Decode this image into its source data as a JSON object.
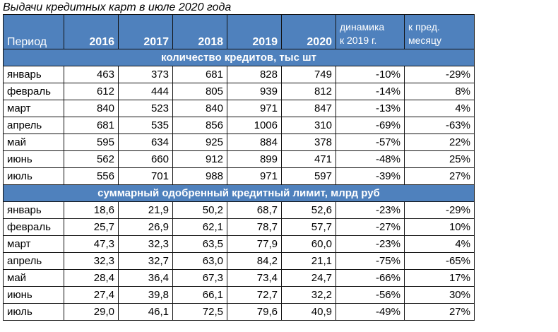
{
  "title": "Выдачи кредитных карт в июле 2020 года",
  "header": {
    "period": "Период",
    "years": [
      "2016",
      "2017",
      "2018",
      "2019",
      "2020"
    ],
    "dyn_line1": "динамика",
    "dyn_line2": "к 2019 г.",
    "prev_line1": "к пред.",
    "prev_line2": "месяцу"
  },
  "sections": [
    {
      "title": "количество кредитов, тыс шт",
      "rows": [
        {
          "month": "январь",
          "v": [
            "463",
            "373",
            "681",
            "828",
            "749"
          ],
          "dyn": "-10%",
          "prev": "-29%"
        },
        {
          "month": "февраль",
          "v": [
            "612",
            "444",
            "805",
            "939",
            "812"
          ],
          "dyn": "-14%",
          "prev": "8%"
        },
        {
          "month": "март",
          "v": [
            "840",
            "523",
            "840",
            "971",
            "847"
          ],
          "dyn": "-13%",
          "prev": "4%"
        },
        {
          "month": "апрель",
          "v": [
            "681",
            "535",
            "856",
            "1006",
            "310"
          ],
          "dyn": "-69%",
          "prev": "-63%"
        },
        {
          "month": "май",
          "v": [
            "595",
            "634",
            "925",
            "884",
            "378"
          ],
          "dyn": "-57%",
          "prev": "22%"
        },
        {
          "month": "июнь",
          "v": [
            "562",
            "660",
            "912",
            "899",
            "471"
          ],
          "dyn": "-48%",
          "prev": "25%"
        },
        {
          "month": "июль",
          "v": [
            "556",
            "701",
            "988",
            "971",
            "597"
          ],
          "dyn": "-39%",
          "prev": "27%"
        }
      ]
    },
    {
      "title": "суммарный одобренный кредитный лимит, млрд руб",
      "rows": [
        {
          "month": "январь",
          "v": [
            "18,6",
            "21,9",
            "50,2",
            "68,7",
            "52,6"
          ],
          "dyn": "-23%",
          "prev": "-29%"
        },
        {
          "month": "февраль",
          "v": [
            "25,7",
            "26,9",
            "62,1",
            "78,7",
            "57,7"
          ],
          "dyn": "-27%",
          "prev": "10%"
        },
        {
          "month": "март",
          "v": [
            "47,3",
            "32,3",
            "63,5",
            "77,9",
            "60,0"
          ],
          "dyn": "-23%",
          "prev": "4%"
        },
        {
          "month": "апрель",
          "v": [
            "32,3",
            "32,7",
            "63,0",
            "84,2",
            "21,1"
          ],
          "dyn": "-75%",
          "prev": "-65%"
        },
        {
          "month": "май",
          "v": [
            "28,4",
            "36,4",
            "67,3",
            "73,4",
            "24,7"
          ],
          "dyn": "-66%",
          "prev": "17%"
        },
        {
          "month": "июнь",
          "v": [
            "27,4",
            "39,8",
            "66,1",
            "72,7",
            "32,2"
          ],
          "dyn": "-56%",
          "prev": "30%"
        },
        {
          "month": "июль",
          "v": [
            "29,0",
            "46,1",
            "72,5",
            "79,6",
            "40,9"
          ],
          "dyn": "-49%",
          "prev": "27%"
        }
      ]
    }
  ],
  "colors": {
    "header_bg": "#4f81bd",
    "header_text": "#ffffff"
  }
}
